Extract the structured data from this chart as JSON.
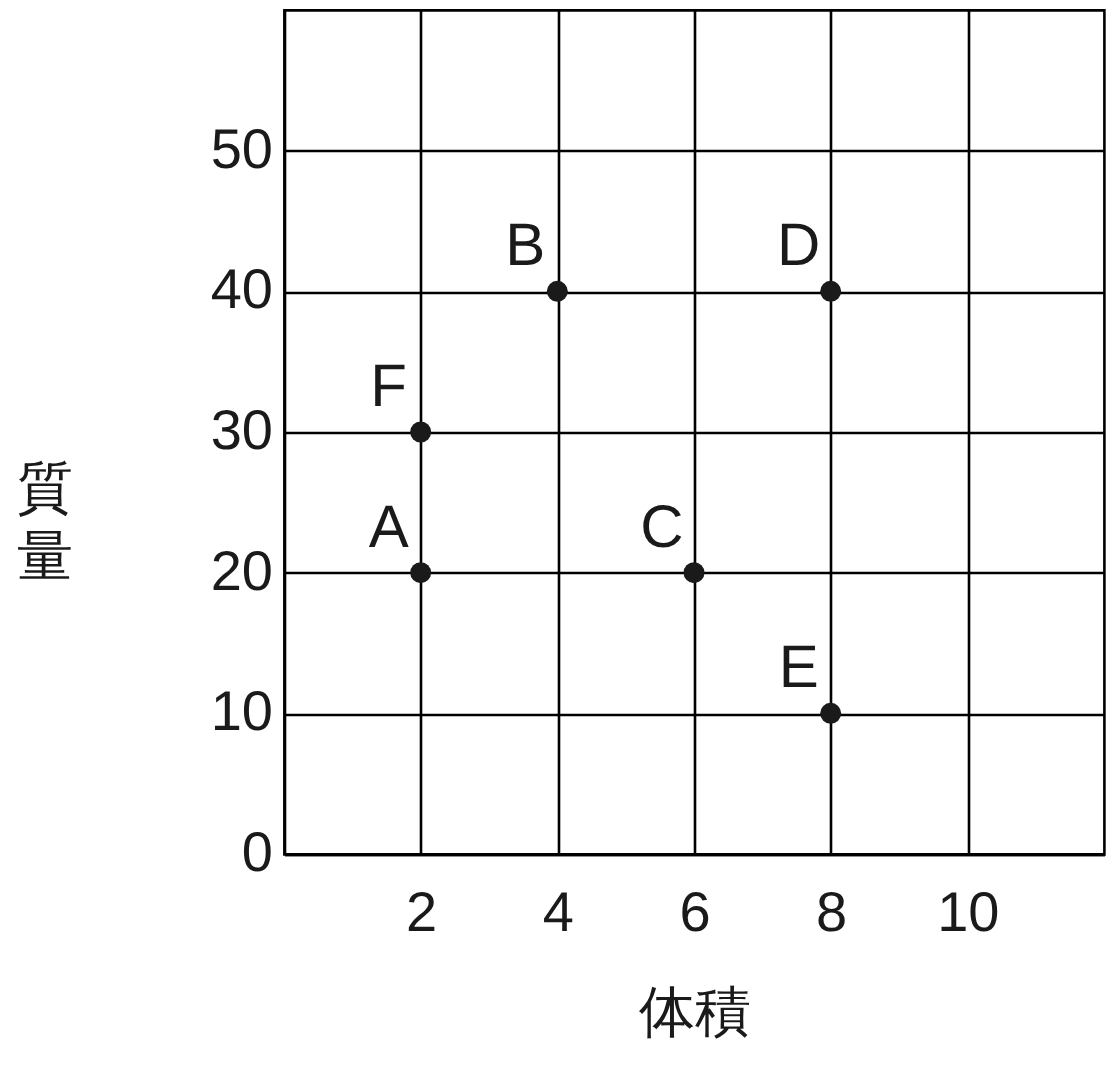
{
  "chart_data": {
    "type": "scatter",
    "xlabel": "体積",
    "ylabel": "質量",
    "x": [
      2,
      4,
      6,
      8,
      8,
      2
    ],
    "values": [
      20,
      40,
      20,
      40,
      10,
      30
    ],
    "color": "#1a1a1a",
    "marker": "circle",
    "grid": true,
    "xlim": [
      0,
      12
    ],
    "ylim": [
      0,
      60
    ],
    "xticks": [
      2,
      4,
      6,
      8,
      10
    ],
    "yticks": [
      0,
      10,
      20,
      30,
      40,
      50
    ],
    "annotations": [
      {
        "text": "A",
        "x": 2,
        "y": 20
      },
      {
        "text": "B",
        "x": 4,
        "y": 40
      },
      {
        "text": "C",
        "x": 6,
        "y": 20
      },
      {
        "text": "D",
        "x": 8,
        "y": 40
      },
      {
        "text": "E",
        "x": 8,
        "y": 10
      },
      {
        "text": "F",
        "x": 2,
        "y": 30
      }
    ]
  }
}
